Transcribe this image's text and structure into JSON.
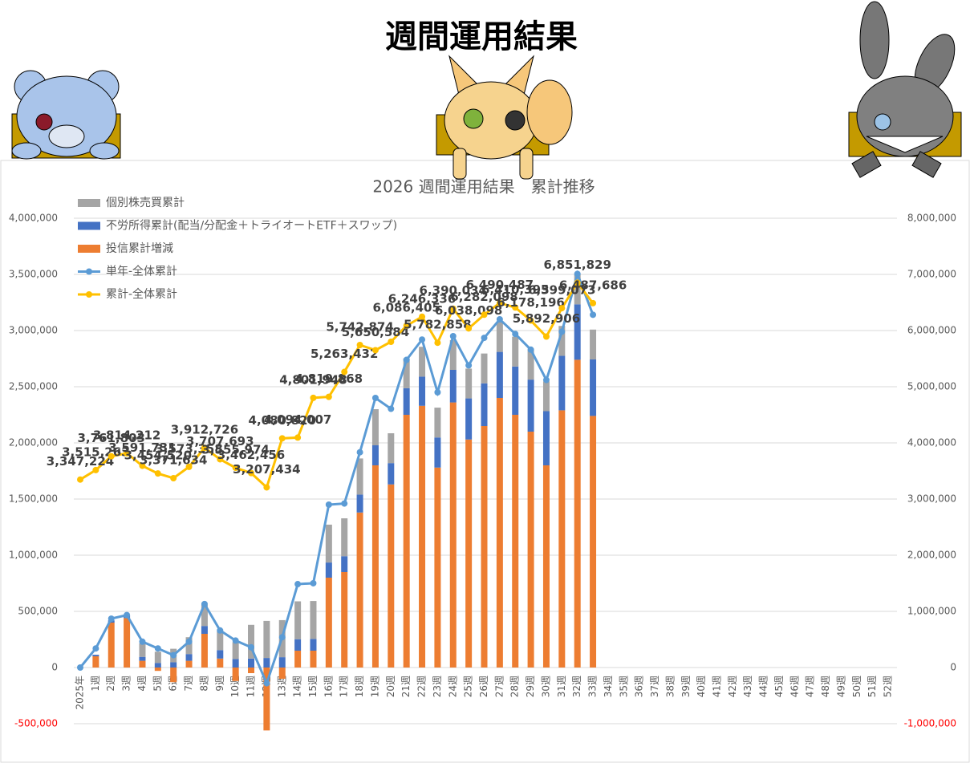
{
  "page_title": "週間運用結果",
  "chart_data": {
    "type": "combo",
    "title": "2026 週間運用結果　累計推移",
    "categories": [
      "2025年",
      "1週",
      "2週",
      "3週",
      "4週",
      "5週",
      "6週",
      "7週",
      "8週",
      "9週",
      "10週",
      "11週",
      "12週",
      "13週",
      "14週",
      "15週",
      "16週",
      "17週",
      "18週",
      "19週",
      "20週",
      "21週",
      "22週",
      "23週",
      "24週",
      "25週",
      "26週",
      "27週",
      "28週",
      "29週",
      "30週",
      "31週",
      "32週",
      "33週",
      "34週",
      "35週",
      "36週",
      "37週",
      "38週",
      "39週",
      "40週",
      "41週",
      "42週",
      "43週",
      "44週",
      "45週",
      "46週",
      "47週",
      "48週",
      "49週",
      "50週",
      "51週",
      "52週"
    ],
    "series": [
      {
        "name": "個別株売買累計",
        "type": "bar",
        "color": "#a5a5a5",
        "values": [
          0,
          0,
          0,
          0,
          120000,
          100000,
          120000,
          150000,
          190000,
          170000,
          150000,
          300000,
          330000,
          330000,
          337314,
          337314,
          337314,
          337314,
          321373,
          321373,
          265553,
          265553,
          265553,
          265553,
          265553,
          265553,
          265553,
          265553,
          265553,
          265553,
          265553,
          265553,
          265553,
          265553,
          null,
          null,
          null,
          null,
          null,
          null,
          null,
          null,
          null,
          null,
          null,
          null,
          null,
          null,
          null,
          null,
          null,
          null,
          null
        ]
      },
      {
        "name": "不労所得累計(配当/分配金＋トライオートETF＋スワップ)",
        "type": "bar",
        "color": "#4472c4",
        "values": [
          0,
          13603,
          20000,
          25000,
          35000,
          41000,
          47000,
          60000,
          70000,
          75000,
          76000,
          80000,
          85000,
          92000,
          102000,
          105000,
          134885,
          141000,
          160000,
          178456,
          190000,
          236818,
          260000,
          268179,
          290000,
          365838,
          380000,
          410000,
          430000,
          463246,
          482076,
          485535,
          493538,
          503144,
          null,
          null,
          null,
          null,
          null,
          null,
          null,
          null,
          null,
          null,
          null,
          null,
          null,
          null,
          null,
          null,
          null,
          null,
          null
        ]
      },
      {
        "name": "投信累計増減",
        "type": "bar",
        "color": "#ed7d31",
        "values": [
          0,
          100000,
          400000,
          440000,
          60000,
          -30000,
          -130000,
          60000,
          300000,
          80000,
          -120000,
          -50000,
          -560000,
          -100000,
          150000,
          150000,
          800000,
          850000,
          1380000,
          1800000,
          1630000,
          2250000,
          2330000,
          1780000,
          2360000,
          2030000,
          2150000,
          2400000,
          2250000,
          2100000,
          1800000,
          2290000,
          2740000,
          2240000,
          null,
          null,
          null,
          null,
          null,
          null,
          null,
          null,
          null,
          null,
          null,
          null,
          null,
          null,
          null,
          null,
          null,
          null,
          null
        ]
      },
      {
        "name": "単年-全体累計",
        "type": "line",
        "color": "#5b9bd5",
        "values": [
          0,
          170000,
          435000,
          466988,
          230000,
          170000,
          110000,
          230000,
          565502,
          330000,
          240000,
          180000,
          -139790,
          270000,
          742720,
          750383,
          1450000,
          1460000,
          1916248,
          2400000,
          2303360,
          2739101,
          2920000,
          2450000,
          2950000,
          2690000,
          2935000,
          3100000,
          2970000,
          2830000,
          2560000,
          2990000,
          3504605,
          3140462,
          null,
          null,
          null,
          null,
          null,
          null,
          null,
          null,
          null,
          null,
          null,
          null,
          null,
          null,
          null,
          null,
          null,
          null,
          null
        ]
      },
      {
        "name": "累計-全体累計",
        "type": "line",
        "axis": "y2",
        "color": "#ffc000",
        "values": [
          3347224,
          3515263,
          3761803,
          3814212,
          3591731,
          3454520,
          3371634,
          3573358,
          3912726,
          3707693,
          3555974,
          3462456,
          3207434,
          4080820,
          4094007,
          4801948,
          4819868,
          5263432,
          5742874,
          5650584,
          5800000,
          6086405,
          6246336,
          5782858,
          6390034,
          6038098,
          6282098,
          6490487,
          6410395,
          6178196,
          5892906,
          6399073,
          6851829,
          6487686,
          null,
          null,
          null,
          null,
          null,
          null,
          null,
          null,
          null,
          null,
          null,
          null,
          null,
          null,
          null,
          null,
          null,
          null,
          null
        ],
        "value_labels": [
          "3,347,224",
          "3,515,263",
          "3,761,803",
          "3,814,212",
          "3,591,731",
          "3,454,520",
          "3,371,634",
          "3,573,358",
          "3,912,726",
          "3,707,693",
          "3,555,974",
          "3,462,456",
          "3,207,434",
          "4,080,820",
          "4,094,007",
          "4,801,948",
          "4,819,868",
          "5,263,432",
          "5,742,874",
          "5,650,584",
          null,
          "6,086,405",
          "6,246,336",
          "5,782,858",
          "6,390,034",
          "6,038,098",
          "6,282,098",
          "6,490,487",
          "6,410,395",
          "6,178,196",
          "5,892,906",
          "6,399,073",
          "6,851,829",
          "6,487,686",
          null,
          null,
          null,
          null,
          null,
          null,
          null,
          null,
          null,
          null,
          null,
          null,
          null,
          null,
          null,
          null,
          null,
          null,
          null
        ]
      }
    ],
    "ylim": [
      -500000,
      4000000
    ],
    "yticks": [
      {
        "value": -500000,
        "label": "-500,000"
      },
      0,
      {
        "value": 500000,
        "label": "500,000"
      },
      {
        "value": 1000000,
        "label": "1,000,000"
      },
      {
        "value": 1500000,
        "label": "1,500,000"
      },
      {
        "value": 2000000,
        "label": "2,000,000"
      },
      {
        "value": 2500000,
        "label": "2,500,000"
      },
      {
        "value": 3000000,
        "label": "3,000,000"
      },
      {
        "value": 3500000,
        "label": "3,500,000"
      },
      {
        "value": 4000000,
        "label": "4,000,000"
      }
    ],
    "y2lim": [
      -1000000,
      8000000
    ],
    "y2ticks": [
      {
        "value": -1000000,
        "label": "-1,000,000"
      },
      0,
      {
        "value": 1000000,
        "label": "1,000,000"
      },
      {
        "value": 2000000,
        "label": "2,000,000"
      },
      {
        "value": 3000000,
        "label": "3,000,000"
      },
      {
        "value": 4000000,
        "label": "4,000,000"
      },
      {
        "value": 5000000,
        "label": "5,000,000"
      },
      {
        "value": 6000000,
        "label": "6,000,000"
      },
      {
        "value": 7000000,
        "label": "7,000,000"
      },
      {
        "value": 8000000,
        "label": "8,000,000"
      }
    ],
    "grid": true,
    "legend": "top-left"
  }
}
